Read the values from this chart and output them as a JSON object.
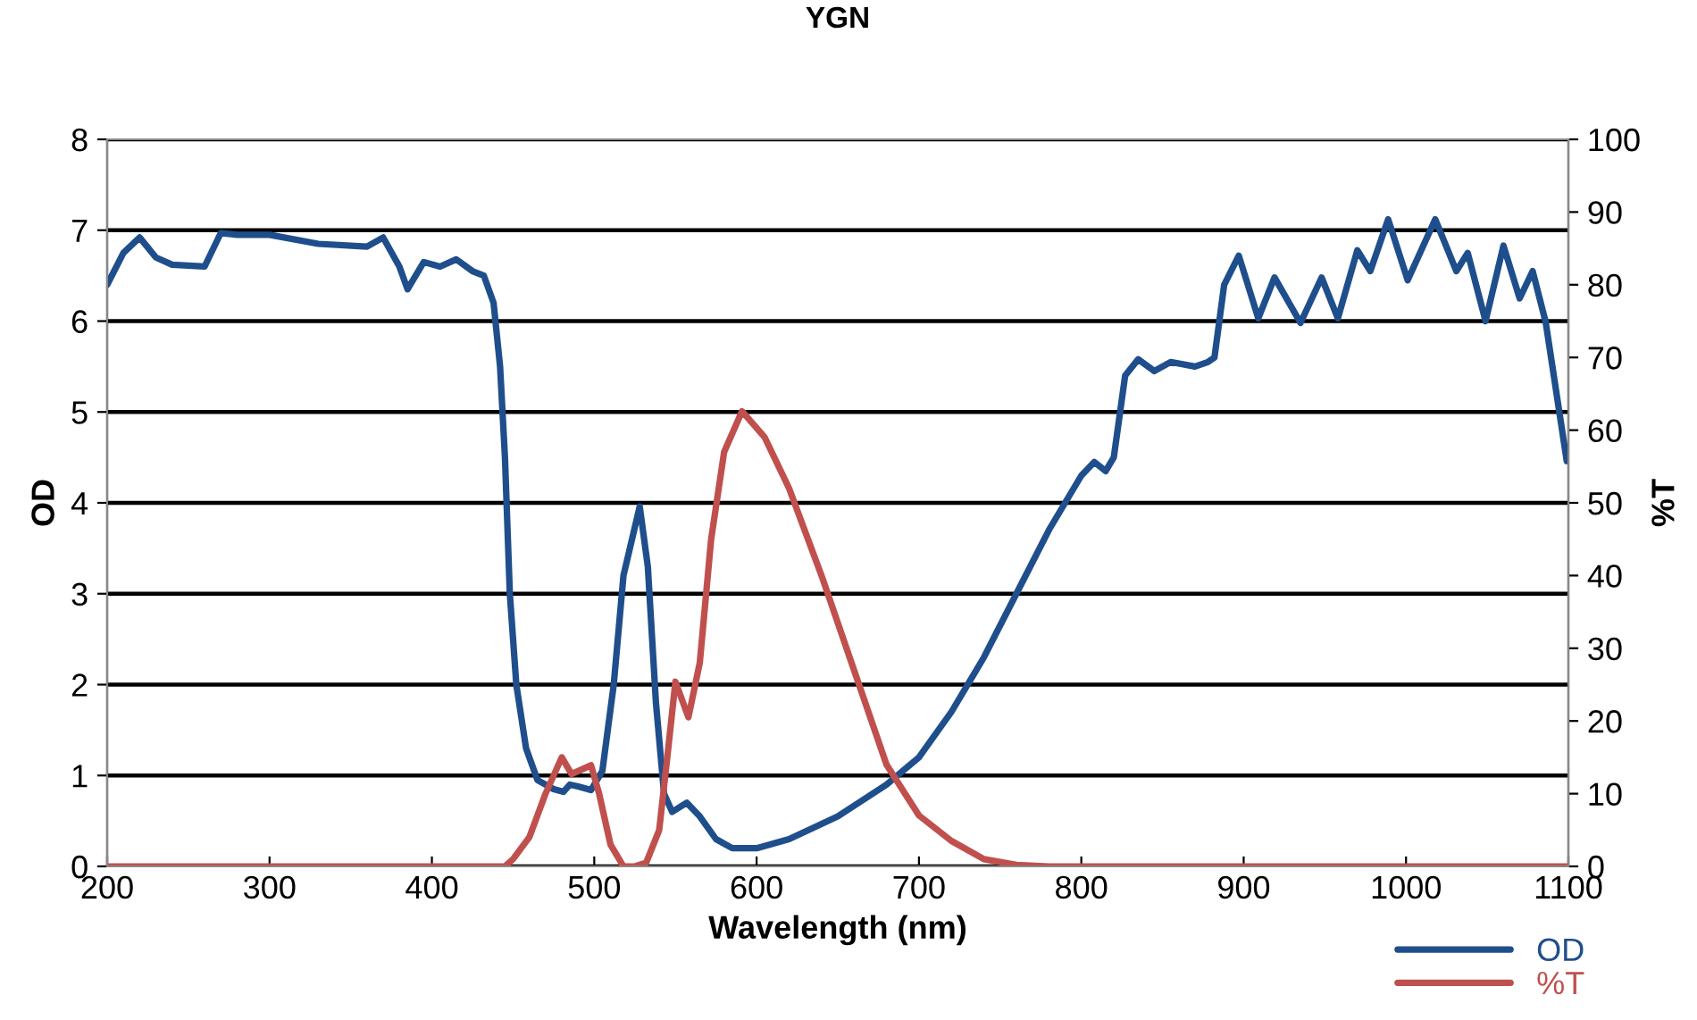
{
  "chart_data": {
    "type": "line",
    "title": "YGN",
    "xlabel": "Wavelength (nm)",
    "ylabel": "OD",
    "y2label": "%T",
    "xlim": [
      200,
      1100
    ],
    "xticks": [
      200,
      300,
      400,
      500,
      600,
      700,
      800,
      900,
      1000,
      1100
    ],
    "ylim": [
      0,
      8
    ],
    "yticks": [
      0,
      1,
      2,
      3,
      4,
      5,
      6,
      7,
      8
    ],
    "y2lim": [
      0,
      100
    ],
    "y2ticks": [
      0,
      10,
      20,
      30,
      40,
      50,
      60,
      70,
      80,
      90,
      100
    ],
    "grid": "y",
    "legend": "bottom right",
    "marker": "none",
    "line_style": "solid",
    "series": [
      {
        "name": "OD",
        "color": "#1f4e8c",
        "x": [
          200,
          210,
          220,
          230,
          240,
          260,
          270,
          280,
          300,
          330,
          360,
          370,
          380,
          385,
          395,
          405,
          415,
          425,
          432,
          438,
          442,
          445,
          448,
          452,
          458,
          465,
          475,
          481,
          485,
          490,
          498,
          505,
          512,
          518,
          528,
          533,
          538,
          543,
          548,
          557,
          565,
          575,
          585,
          600,
          620,
          650,
          680,
          700,
          720,
          740,
          760,
          780,
          800,
          808,
          815,
          820,
          827,
          835,
          845,
          855,
          870,
          878,
          882,
          888,
          897,
          909,
          919,
          935,
          948,
          958,
          970,
          978,
          989,
          1001,
          1018,
          1031,
          1038,
          1049,
          1060,
          1070,
          1078,
          1086,
          1099
        ],
        "values": [
          6.4,
          6.75,
          6.92,
          6.7,
          6.62,
          6.6,
          6.97,
          6.95,
          6.95,
          6.85,
          6.82,
          6.92,
          6.6,
          6.35,
          6.65,
          6.6,
          6.68,
          6.55,
          6.5,
          6.2,
          5.5,
          4.5,
          3.0,
          2.0,
          1.3,
          0.95,
          0.85,
          0.82,
          0.9,
          0.88,
          0.84,
          1.05,
          2.0,
          3.2,
          3.96,
          3.3,
          1.8,
          0.8,
          0.6,
          0.7,
          0.55,
          0.3,
          0.2,
          0.2,
          0.3,
          0.55,
          0.9,
          1.2,
          1.7,
          2.3,
          3.0,
          3.7,
          4.3,
          4.45,
          4.35,
          4.5,
          5.4,
          5.58,
          5.45,
          5.55,
          5.5,
          5.55,
          5.6,
          6.4,
          6.72,
          6.03,
          6.48,
          5.98,
          6.48,
          6.03,
          6.78,
          6.55,
          7.12,
          6.45,
          7.12,
          6.55,
          6.75,
          6.0,
          6.83,
          6.25,
          6.55,
          5.99,
          4.46
        ]
      },
      {
        "name": "%T",
        "color": "#c0504d",
        "axis": "y2",
        "x": [
          200,
          445,
          450,
          460,
          470,
          480,
          486,
          498,
          503,
          510,
          518,
          525,
          532,
          540,
          545,
          550,
          558,
          565,
          572,
          580,
          591,
          605,
          620,
          640,
          660,
          680,
          700,
          720,
          740,
          760,
          780,
          1100
        ],
        "values": [
          0,
          0,
          1,
          4,
          10,
          15,
          12.7,
          13.9,
          10,
          3,
          0,
          0,
          0.5,
          5,
          15,
          25.4,
          20.5,
          28,
          45,
          57,
          62.6,
          59,
          52,
          40,
          27,
          14,
          7,
          3.5,
          1,
          0.2,
          0,
          0
        ]
      }
    ]
  }
}
